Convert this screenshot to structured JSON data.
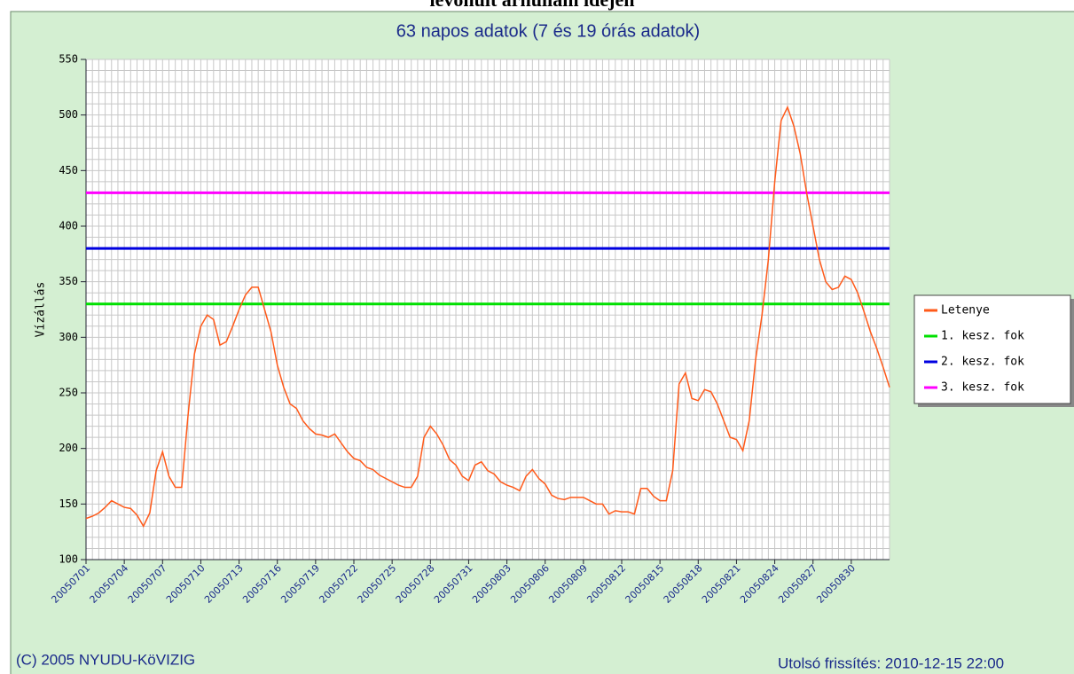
{
  "heading": "levonult árhullám idején",
  "chart_data": {
    "type": "line",
    "title": "63 napos adatok (7 és 19 órás adatok)",
    "y_label": "Vízállás",
    "categories": [
      "20050701",
      null,
      null,
      null,
      null,
      null,
      "20050704",
      null,
      null,
      null,
      null,
      null,
      "20050707",
      null,
      null,
      null,
      null,
      null,
      "20050710",
      null,
      null,
      null,
      null,
      null,
      "20050713",
      null,
      null,
      null,
      null,
      null,
      "20050716",
      null,
      null,
      null,
      null,
      null,
      "20050719",
      null,
      null,
      null,
      null,
      null,
      "20050722",
      null,
      null,
      null,
      null,
      null,
      "20050725",
      null,
      null,
      null,
      null,
      null,
      "20050728",
      null,
      null,
      null,
      null,
      null,
      "20050731",
      null,
      null,
      null,
      null,
      null,
      "20050803",
      null,
      null,
      null,
      null,
      null,
      "20050806",
      null,
      null,
      null,
      null,
      null,
      "20050809",
      null,
      null,
      null,
      null,
      null,
      "20050812",
      null,
      null,
      null,
      null,
      null,
      "20050815",
      null,
      null,
      null,
      null,
      null,
      "20050818",
      null,
      null,
      null,
      null,
      null,
      "20050821",
      null,
      null,
      null,
      null,
      null,
      "20050824",
      null,
      null,
      null,
      null,
      null,
      "20050827",
      null,
      null,
      null,
      null,
      null,
      "20050830",
      null,
      null,
      null,
      null,
      null,
      null
    ],
    "series": [
      {
        "name": "Letenye",
        "color": "#ff5a1a",
        "values": [
          137,
          139,
          142,
          147,
          153,
          150,
          147,
          146,
          140,
          130,
          142,
          180,
          197,
          175,
          165,
          165,
          230,
          285,
          310,
          320,
          316,
          293,
          296,
          310,
          325,
          338,
          345,
          345,
          325,
          305,
          275,
          255,
          240,
          236,
          225,
          218,
          213,
          212,
          210,
          213,
          205,
          197,
          191,
          189,
          183,
          181,
          176,
          173,
          170,
          167,
          165,
          165,
          175,
          210,
          220,
          213,
          203,
          190,
          185,
          175,
          171,
          185,
          188,
          180,
          177,
          170,
          167,
          165,
          162,
          175,
          181,
          173,
          168,
          158,
          155,
          154,
          156,
          156,
          156,
          153,
          150,
          150,
          141,
          144,
          143,
          143,
          141,
          164,
          164,
          157,
          153,
          153,
          180,
          258,
          268,
          245,
          243,
          253,
          251,
          240,
          225,
          210,
          208,
          198,
          225,
          280,
          320,
          370,
          440,
          495,
          507,
          490,
          465,
          430,
          400,
          370,
          350,
          343,
          345,
          355,
          352,
          340,
          323,
          305,
          290,
          273,
          255
        ]
      }
    ],
    "thresholds": [
      {
        "name": "1. kesz. fok",
        "color": "#00e000",
        "value": 330
      },
      {
        "name": "2. kesz. fok",
        "color": "#0000e0",
        "value": 380
      },
      {
        "name": "3. kesz. fok",
        "color": "#ff00ff",
        "value": 430
      }
    ],
    "ylim": [
      100,
      550
    ],
    "yticks": [
      100,
      150,
      200,
      250,
      300,
      350,
      400,
      450,
      500,
      550
    ],
    "grid": true,
    "legend": "right"
  },
  "footer": {
    "copyright": "(C) 2005 NYUDU-KöVIZIG",
    "updated": "Utolsó frissítés: 2010-12-15 22:00"
  }
}
